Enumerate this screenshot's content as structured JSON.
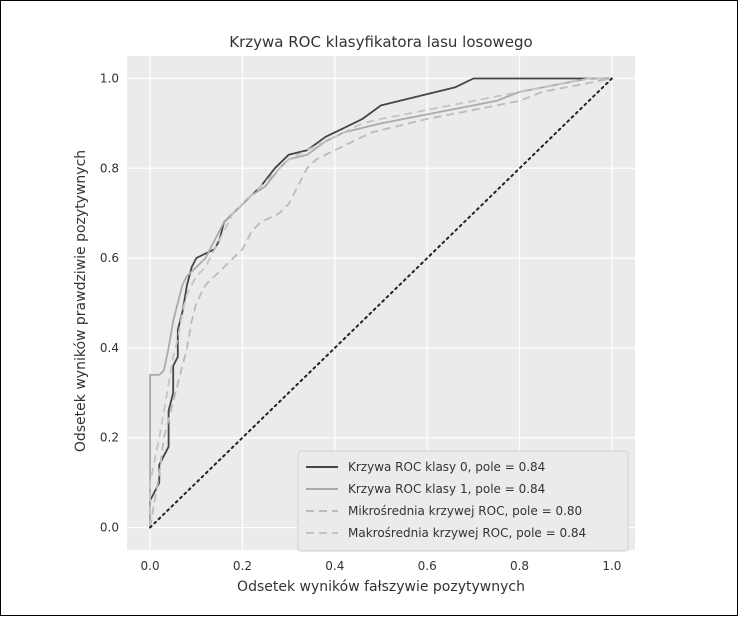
{
  "chart_data": {
    "type": "line",
    "title": "Krzywa ROC klasyfikatora lasu losowego",
    "xlabel": "Odsetek wyników fałszywie pozytywnych",
    "ylabel": "Odsetek wyników prawdziwie pozytywnych",
    "xlim": [
      -0.05,
      1.05
    ],
    "ylim": [
      -0.05,
      1.05
    ],
    "xticks": [
      "0.0",
      "0.2",
      "0.4",
      "0.6",
      "0.8",
      "1.0"
    ],
    "yticks": [
      "0.0",
      "0.2",
      "0.4",
      "0.6",
      "0.8",
      "1.0"
    ],
    "grid": true,
    "background": "#ebebeb",
    "legend_position": "lower-right",
    "series": [
      {
        "name": "Krzywa ROC klasy 0, pole = 0.84",
        "color": "#444444",
        "style": "solid",
        "x": [
          0.0,
          0.0,
          0.02,
          0.02,
          0.04,
          0.04,
          0.05,
          0.05,
          0.06,
          0.06,
          0.07,
          0.08,
          0.09,
          0.1,
          0.12,
          0.14,
          0.15,
          0.16,
          0.18,
          0.2,
          0.22,
          0.24,
          0.27,
          0.3,
          0.34,
          0.38,
          0.42,
          0.46,
          0.5,
          0.54,
          0.58,
          0.62,
          0.66,
          0.7,
          0.75,
          0.8,
          0.85,
          0.9,
          0.95,
          1.0
        ],
        "y": [
          0.0,
          0.06,
          0.1,
          0.14,
          0.18,
          0.26,
          0.3,
          0.36,
          0.38,
          0.44,
          0.48,
          0.54,
          0.58,
          0.6,
          0.61,
          0.62,
          0.64,
          0.68,
          0.7,
          0.72,
          0.74,
          0.76,
          0.8,
          0.83,
          0.84,
          0.87,
          0.89,
          0.91,
          0.94,
          0.95,
          0.96,
          0.97,
          0.98,
          1.0,
          1.0,
          1.0,
          1.0,
          1.0,
          1.0,
          1.0
        ]
      },
      {
        "name": "Krzywa ROC klasy 1, pole = 0.84",
        "color": "#aaaaaa",
        "style": "solid",
        "x": [
          0.0,
          0.0,
          0.0,
          0.02,
          0.03,
          0.04,
          0.05,
          0.06,
          0.07,
          0.08,
          0.1,
          0.12,
          0.14,
          0.16,
          0.18,
          0.2,
          0.22,
          0.25,
          0.28,
          0.3,
          0.34,
          0.38,
          0.42,
          0.46,
          0.5,
          0.55,
          0.6,
          0.65,
          0.7,
          0.75,
          0.8,
          0.85,
          0.9,
          0.95,
          1.0
        ],
        "y": [
          0.0,
          0.2,
          0.34,
          0.34,
          0.35,
          0.4,
          0.46,
          0.5,
          0.54,
          0.56,
          0.58,
          0.6,
          0.64,
          0.68,
          0.7,
          0.72,
          0.74,
          0.76,
          0.8,
          0.82,
          0.83,
          0.86,
          0.88,
          0.89,
          0.9,
          0.91,
          0.92,
          0.93,
          0.94,
          0.95,
          0.97,
          0.98,
          0.99,
          1.0,
          1.0
        ]
      },
      {
        "name": "Mikrośrednia krzywej ROC, pole = 0.80",
        "color": "#bbbbbb",
        "style": "dashed",
        "x": [
          0.0,
          0.01,
          0.02,
          0.03,
          0.05,
          0.06,
          0.07,
          0.08,
          0.09,
          0.1,
          0.12,
          0.14,
          0.16,
          0.18,
          0.2,
          0.22,
          0.24,
          0.26,
          0.28,
          0.3,
          0.32,
          0.34,
          0.36,
          0.4,
          0.44,
          0.48,
          0.52,
          0.56,
          0.6,
          0.65,
          0.7,
          0.75,
          0.8,
          0.85,
          0.9,
          0.95,
          1.0
        ],
        "y": [
          0.0,
          0.06,
          0.12,
          0.2,
          0.28,
          0.32,
          0.36,
          0.4,
          0.46,
          0.5,
          0.54,
          0.56,
          0.58,
          0.6,
          0.62,
          0.66,
          0.68,
          0.69,
          0.7,
          0.72,
          0.76,
          0.8,
          0.82,
          0.84,
          0.86,
          0.88,
          0.89,
          0.9,
          0.91,
          0.92,
          0.93,
          0.94,
          0.95,
          0.97,
          0.98,
          0.99,
          1.0
        ]
      },
      {
        "name": "Makrośrednia krzywej ROC, pole = 0.84",
        "color": "#c4c4c4",
        "style": "dashed",
        "x": [
          0.0,
          0.0,
          0.02,
          0.03,
          0.04,
          0.05,
          0.06,
          0.07,
          0.08,
          0.1,
          0.12,
          0.14,
          0.16,
          0.18,
          0.2,
          0.22,
          0.24,
          0.26,
          0.28,
          0.3,
          0.34,
          0.38,
          0.42,
          0.46,
          0.5,
          0.55,
          0.6,
          0.65,
          0.7,
          0.75,
          0.8,
          0.85,
          0.9,
          0.95,
          1.0
        ],
        "y": [
          0.0,
          0.1,
          0.2,
          0.26,
          0.32,
          0.38,
          0.42,
          0.48,
          0.52,
          0.56,
          0.58,
          0.62,
          0.66,
          0.7,
          0.72,
          0.74,
          0.76,
          0.78,
          0.8,
          0.82,
          0.84,
          0.86,
          0.88,
          0.9,
          0.91,
          0.92,
          0.93,
          0.94,
          0.95,
          0.96,
          0.97,
          0.98,
          0.99,
          1.0,
          1.0
        ]
      },
      {
        "name": "",
        "color": "#222222",
        "style": "dotted",
        "x": [
          0.0,
          1.0
        ],
        "y": [
          0.0,
          1.0
        ]
      }
    ]
  }
}
